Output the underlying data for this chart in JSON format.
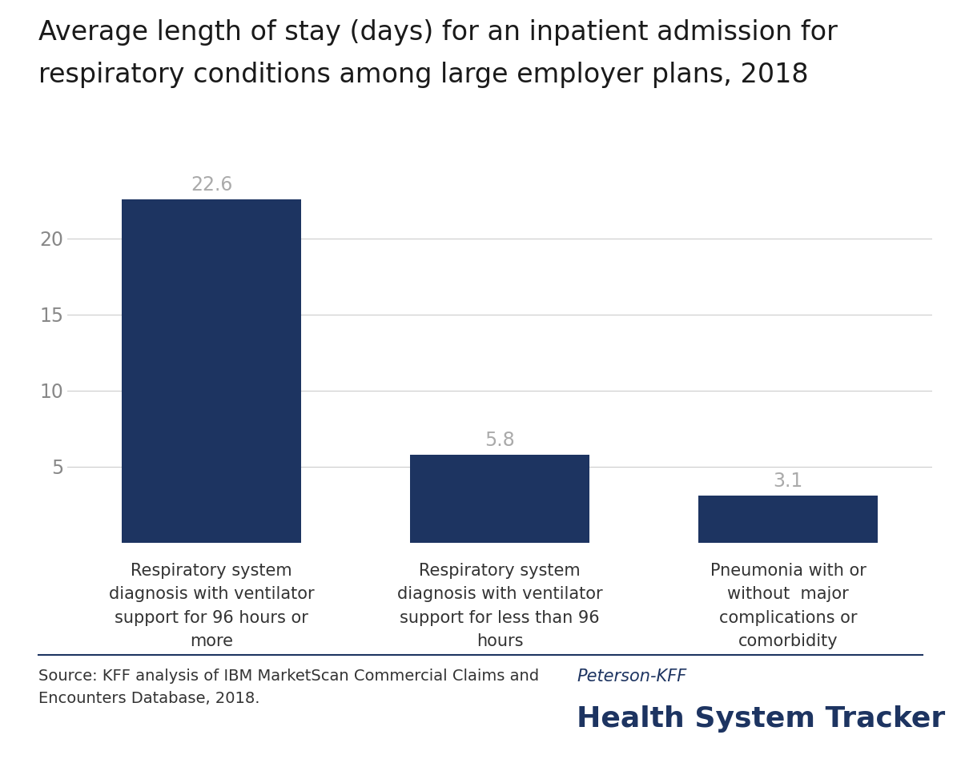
{
  "title_line1": "Average length of stay (days) for an inpatient admission for",
  "title_line2": "respiratory conditions among large employer plans, 2018",
  "categories": [
    "Respiratory system\ndiagnosis with ventilator\nsupport for 96 hours or\nmore",
    "Respiratory system\ndiagnosis with ventilator\nsupport for less than 96\nhours",
    "Pneumonia with or\nwithout  major\ncomplications or\ncomorbidity"
  ],
  "values": [
    22.6,
    5.8,
    3.1
  ],
  "bar_color": "#1d3461",
  "value_color": "#aaaaaa",
  "yticks": [
    5,
    10,
    15,
    20
  ],
  "ylim": [
    0,
    25.5
  ],
  "source_text": "Source: KFF analysis of IBM MarketScan Commercial Claims and\nEncounters Database, 2018.",
  "logo_line1": "Peterson-KFF",
  "logo_line2": "Health System Tracker",
  "logo_line1_color": "#1d3461",
  "logo_line2_color": "#1d3461",
  "title_fontsize": 24,
  "tick_fontsize": 17,
  "label_fontsize": 15,
  "value_fontsize": 17,
  "source_fontsize": 14,
  "logo_line1_fontsize": 15,
  "logo_line2_fontsize": 26,
  "background_color": "#ffffff"
}
